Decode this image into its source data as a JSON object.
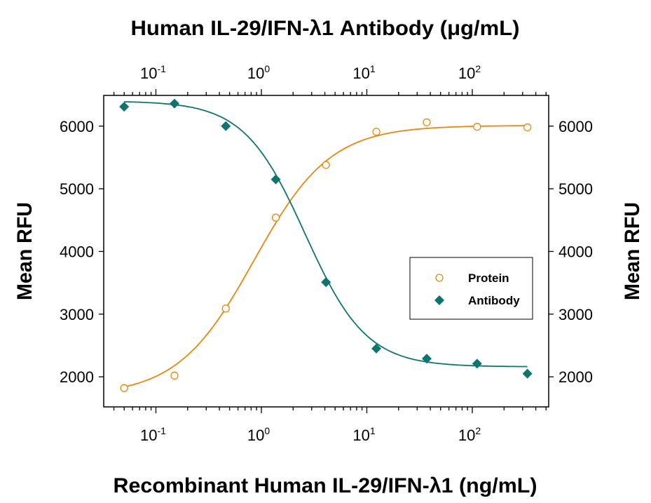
{
  "chart_data": {
    "type": "scatter",
    "title": "Human IL-29/IFN-λ1 Antibody (μg/mL)",
    "xlabel": "Recombinant Human IL-29/IFN-λ1 (ng/mL)",
    "ylabel": "Mean RFU",
    "ylabel_right": "Mean RFU",
    "xscale": "log",
    "xlim": [
      0.032,
      530
    ],
    "ylim": [
      1520,
      6490
    ],
    "x_ticks": [
      {
        "value": 0.1,
        "base": "10",
        "exp": "-1"
      },
      {
        "value": 1,
        "base": "10",
        "exp": "0"
      },
      {
        "value": 10,
        "base": "10",
        "exp": "1"
      },
      {
        "value": 100,
        "base": "10",
        "exp": "2"
      }
    ],
    "y_ticks": [
      "2000",
      "3000",
      "4000",
      "5000",
      "6000"
    ],
    "legend_position": "center-right",
    "series": [
      {
        "name": "Protein",
        "marker": "open-circle",
        "color": "#E8870E",
        "x": [
          0.05,
          0.15,
          0.46,
          1.37,
          4.1,
          12.3,
          37,
          111,
          333
        ],
        "y": [
          1820,
          2020,
          3090,
          4540,
          5380,
          5910,
          6060,
          5990,
          5980
        ],
        "fit": {
          "bottom": 1700,
          "top": 6010,
          "ec50": 0.85,
          "hill": 1.2
        }
      },
      {
        "name": "Antibody",
        "marker": "filled-diamond",
        "color": "#0E7470",
        "x": [
          0.05,
          0.15,
          0.46,
          1.37,
          4.1,
          12.3,
          37,
          111,
          333
        ],
        "y": [
          6310,
          6360,
          6000,
          5150,
          3510,
          2450,
          2290,
          2210,
          2050
        ],
        "fit": {
          "bottom": 2160,
          "top": 6400,
          "ec50": 2.6,
          "hill": 1.5
        }
      }
    ]
  }
}
